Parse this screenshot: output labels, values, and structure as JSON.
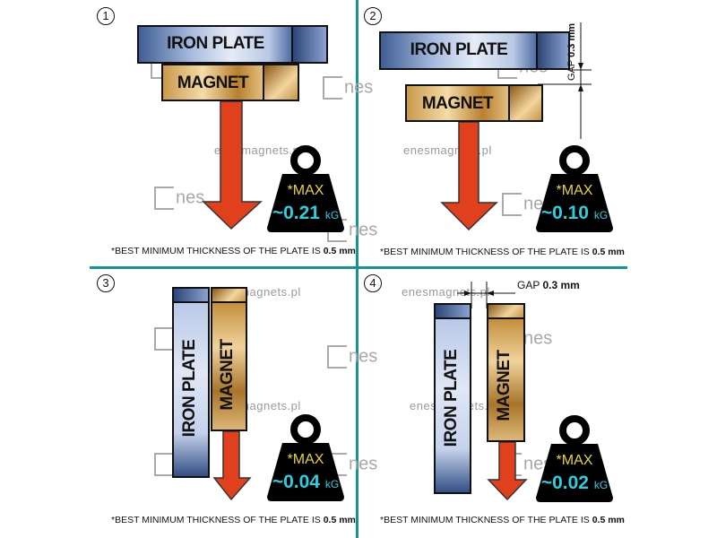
{
  "panels": [
    {
      "number": "1",
      "iron_label": "IRON PLATE",
      "magnet_label": "MAGNET",
      "weight_max": "*MAX",
      "weight_value": "~0.21",
      "weight_unit": "kG",
      "footnote_text": "*BEST MINIMUM THICKNESS OF THE PLATE IS",
      "footnote_value": "0.5 mm"
    },
    {
      "number": "2",
      "iron_label": "IRON PLATE",
      "magnet_label": "MAGNET",
      "weight_max": "*MAX",
      "weight_value": "~0.10",
      "weight_unit": "kG",
      "footnote_text": "*BEST MINIMUM THICKNESS OF THE PLATE IS",
      "footnote_value": "0.5 mm",
      "gap_label": "GAP",
      "gap_value": "0.3 mm"
    },
    {
      "number": "3",
      "iron_label": "IRON  PLATE",
      "magnet_label": "MAGNET",
      "weight_max": "*MAX",
      "weight_value": "~0.04",
      "weight_unit": "kG",
      "footnote_text": "*BEST MINIMUM THICKNESS OF THE PLATE IS",
      "footnote_value": "0.5 mm"
    },
    {
      "number": "4",
      "iron_label": "IRON PLATE",
      "magnet_label": "MAGNET",
      "weight_max": "*MAX",
      "weight_value": "~0.02",
      "weight_unit": "kG",
      "footnote_text": "*BEST MINIMUM THICKNESS OF THE PLATE IS",
      "footnote_value": "0.5 mm",
      "gap_label": "GAP",
      "gap_value": "0.3 mm"
    }
  ],
  "watermark": {
    "site": "enesmagnets.pl",
    "logo": "nes"
  },
  "colors": {
    "divider": "#17958c",
    "arrow": "#e0401c",
    "weight": "#000000",
    "max_text": "#e8d33a",
    "value_text": "#2ad0e0"
  }
}
